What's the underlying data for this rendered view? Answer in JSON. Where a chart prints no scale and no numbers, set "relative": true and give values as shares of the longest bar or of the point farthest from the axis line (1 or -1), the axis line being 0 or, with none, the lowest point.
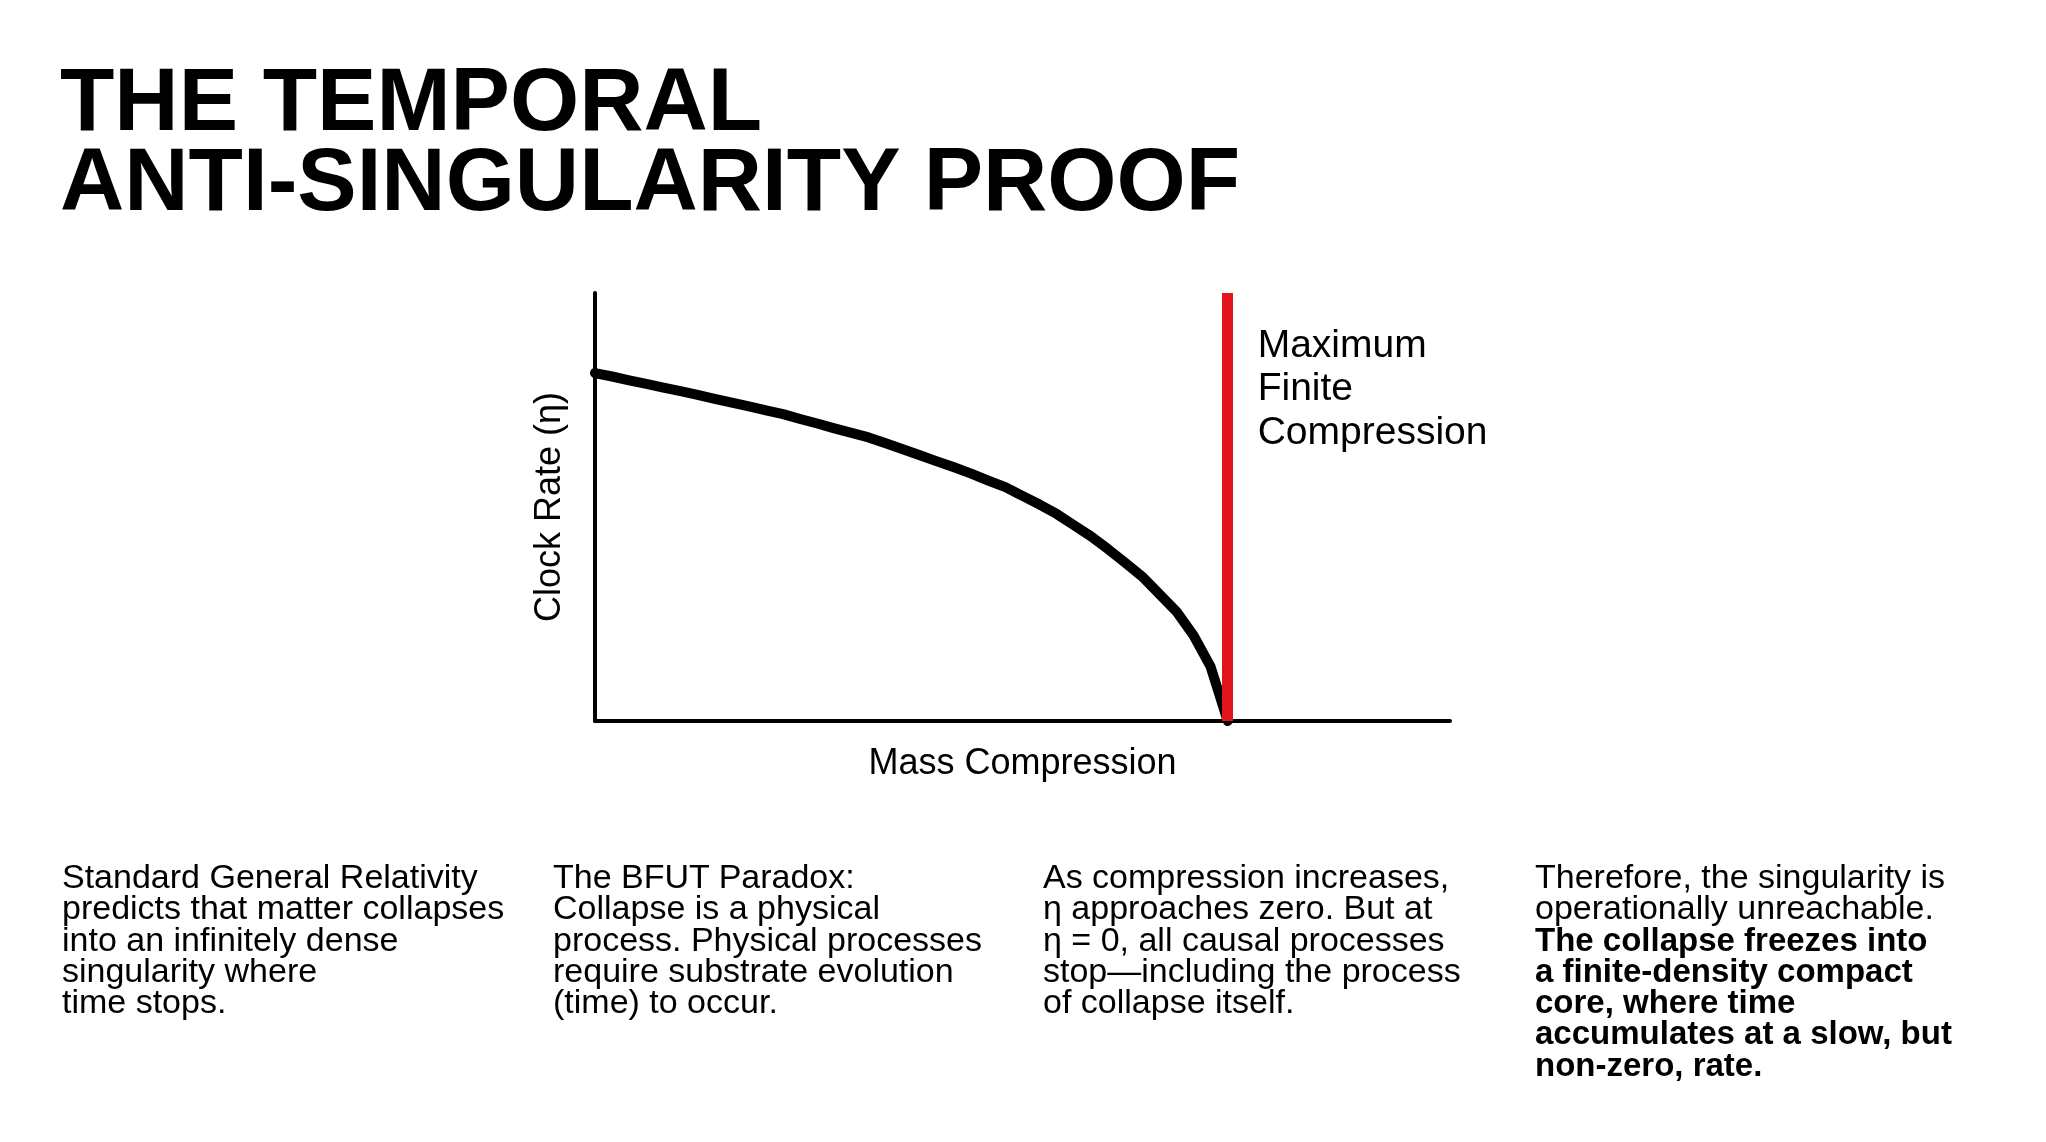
{
  "chart_data": {
    "type": "line",
    "title": "THE TEMPORAL ANTI-SINGULARITY PROOF",
    "xlabel": "Mass Compression",
    "ylabel": "Clock Rate (η)",
    "relative": true,
    "categories": [
      null,
      null,
      null,
      null,
      null,
      null,
      null,
      null,
      null,
      null,
      null,
      null,
      null,
      null,
      null,
      null,
      null,
      null,
      null,
      null,
      null,
      null,
      null,
      null,
      null,
      null,
      null,
      null,
      null,
      null,
      null,
      null,
      null,
      null,
      null,
      null,
      null,
      null,
      null,
      null,
      null,
      null,
      null,
      null,
      null,
      null,
      null,
      null,
      null,
      null,
      null
    ],
    "series": [
      {
        "color": "#000000",
        "values": [
          1,
          0.99,
          0.979,
          0.969,
          0.958,
          0.948,
          0.937,
          0.926,
          0.915,
          0.904,
          0.893,
          0.882,
          0.868,
          0.855,
          0.841,
          0.828,
          0.815,
          0.798,
          0.781,
          0.764,
          0.746,
          0.729,
          0.711,
          0.691,
          0.672,
          0.647,
          0.622,
          0.595,
          0.563,
          0.531,
          0.494,
          0.455,
          0.415,
          0.365,
          0.315,
          0.246,
          0.156,
          0,
          null,
          null,
          null,
          null,
          null,
          null,
          null,
          null,
          null,
          null,
          null,
          null,
          null
        ]
      }
    ],
    "annotations": [
      "Maximum Finite Compression",
      "Standard General Relativity\npredicts that matter collapses\ninto an infinitely dense\nsingularity where\ntime stops.",
      "The BFUT Paradox:\nCollapse is a physical\nprocess. Physical processes\nrequire substrate evolution\n(time) to occur.",
      "As compression increases,\nη approaches zero. But at\nη = 0, all causal processes\nstop—including the process\nof collapse itself.",
      "Therefore, the singularity is\noperationally unreachable.",
      "The collapse freezes into\na finite-density compact\ncore, where time\naccumulates at a slow, but\nnon-zero, rate."
    ]
  }
}
